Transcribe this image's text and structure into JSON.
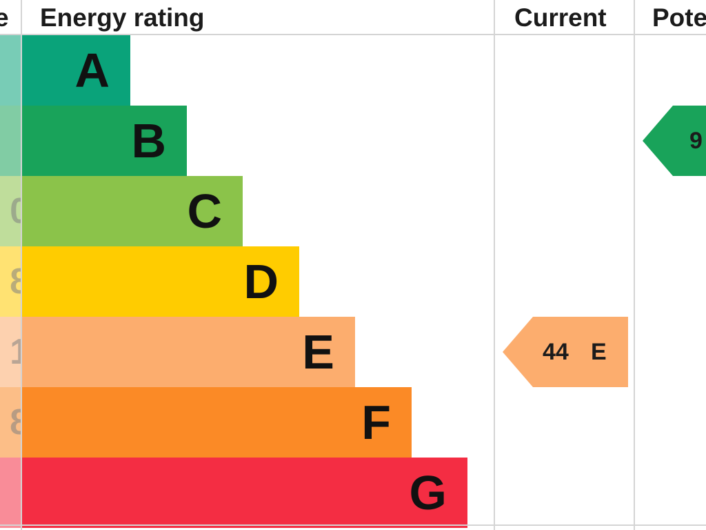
{
  "header": {
    "score_col": "e",
    "rating_col": "Energy rating",
    "current_col": "Current",
    "potential_col": "Pote"
  },
  "score_fragments": [
    "",
    "",
    "0",
    "8",
    "1",
    "8",
    ""
  ],
  "bands": [
    {
      "letter": "A",
      "color": "#0aa37a"
    },
    {
      "letter": "B",
      "color": "#19a35a"
    },
    {
      "letter": "C",
      "color": "#8bc34a"
    },
    {
      "letter": "D",
      "color": "#ffcc00"
    },
    {
      "letter": "E",
      "color": "#fcad6e"
    },
    {
      "letter": "F",
      "color": "#fb8a26"
    },
    {
      "letter": "G",
      "color": "#f42d43"
    }
  ],
  "current": {
    "value": "44",
    "letter": "E",
    "color": "#fcad6e"
  },
  "potential": {
    "value": "9",
    "color": "#19a35a"
  },
  "chart_data": {
    "type": "bar",
    "categories": [
      "A",
      "B",
      "C",
      "D",
      "E",
      "F",
      "G"
    ],
    "title": "",
    "columns": [
      "Energy rating",
      "Current",
      "Pote"
    ],
    "current": {
      "value": 44,
      "band": "E"
    },
    "potential": {
      "value_visible": "9",
      "band": "B"
    }
  }
}
